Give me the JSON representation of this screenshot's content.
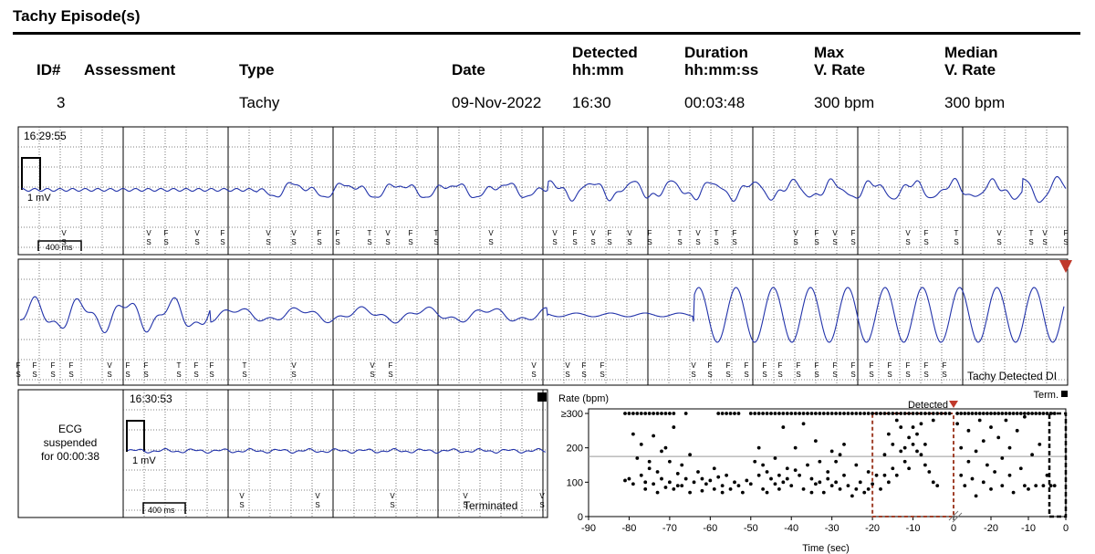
{
  "title": "Tachy Episode(s)",
  "table": {
    "headers": {
      "id": "ID#",
      "assessment": "Assessment",
      "type": "Type",
      "date": "Date",
      "detected_l1": "Detected",
      "detected_l2": "hh:mm",
      "duration_l1": "Duration",
      "duration_l2": "hh:mm:ss",
      "maxrate_l1": "Max",
      "maxrate_l2": "V. Rate",
      "medrate_l1": "Median",
      "medrate_l2": "V. Rate"
    },
    "row": {
      "id": "3",
      "assessment": "",
      "type": "Tachy",
      "date": "09-Nov-2022",
      "detected": "16:30",
      "duration": "00:03:48",
      "max_rate": "300 bpm",
      "median_rate": "300 bpm"
    }
  },
  "ecg": {
    "strip1_time": "16:29:55",
    "strip3_time": "16:30:53",
    "mv_label": "1 mV",
    "ms_label": "400 ms",
    "suspended_l1": "ECG",
    "suspended_l2": "suspended",
    "suspended_l3": "for 00:00:38",
    "tachy_detected": "Tachy Detected DI",
    "terminated": "Terminated",
    "trace_color": "#2233aa"
  },
  "chart_data": {
    "type": "scatter",
    "ylabel": "Rate (bpm)",
    "xlabel": "Time (sec)",
    "y_ticks": [
      "0",
      "100",
      "200",
      "≥300"
    ],
    "x_ticks_left": [
      "-90",
      "-80",
      "-70",
      "-60",
      "-50",
      "-40",
      "-30",
      "-20",
      "-10",
      "0"
    ],
    "x_ticks_right": [
      "-20",
      "-10",
      "0"
    ],
    "xlim_left": [
      -90,
      0
    ],
    "xlim_right": [
      -30,
      0
    ],
    "ylim": [
      0,
      300
    ],
    "reference_line_bpm": 175,
    "detected_label": "Detected",
    "term_label": "Term.",
    "detected_window_sec": [
      -20,
      0
    ],
    "points_left": [
      [
        -81,
        300
      ],
      [
        -80,
        300
      ],
      [
        -79,
        300
      ],
      [
        -78,
        300
      ],
      [
        -77,
        300
      ],
      [
        -76,
        300
      ],
      [
        -75,
        300
      ],
      [
        -74,
        300
      ],
      [
        -73,
        300
      ],
      [
        -72,
        300
      ],
      [
        -71,
        300
      ],
      [
        -70,
        300
      ],
      [
        -69,
        300
      ],
      [
        -66,
        300
      ],
      [
        -58,
        300
      ],
      [
        -57,
        300
      ],
      [
        -56,
        300
      ],
      [
        -55,
        300
      ],
      [
        -54,
        300
      ],
      [
        -53,
        300
      ],
      [
        -50,
        300
      ],
      [
        -49,
        300
      ],
      [
        -48,
        300
      ],
      [
        -47,
        300
      ],
      [
        -46,
        300
      ],
      [
        -45,
        300
      ],
      [
        -44,
        300
      ],
      [
        -43,
        300
      ],
      [
        -42,
        300
      ],
      [
        -41,
        300
      ],
      [
        -40,
        300
      ],
      [
        -39,
        300
      ],
      [
        -38,
        300
      ],
      [
        -37,
        300
      ],
      [
        -36,
        300
      ],
      [
        -35,
        300
      ],
      [
        -34,
        300
      ],
      [
        -33,
        300
      ],
      [
        -32,
        300
      ],
      [
        -31,
        300
      ],
      [
        -30,
        300
      ],
      [
        -29,
        300
      ],
      [
        -28,
        300
      ],
      [
        -27,
        300
      ],
      [
        -26,
        300
      ],
      [
        -25,
        300
      ],
      [
        -24,
        300
      ],
      [
        -23,
        300
      ],
      [
        -22,
        300
      ],
      [
        -21,
        300
      ],
      [
        -20,
        300
      ],
      [
        -19,
        300
      ],
      [
        -18,
        300
      ],
      [
        -17,
        300
      ],
      [
        -16,
        300
      ],
      [
        -15,
        300
      ],
      [
        -14,
        300
      ],
      [
        -13,
        300
      ],
      [
        -12,
        300
      ],
      [
        -11,
        300
      ],
      [
        -10,
        300
      ],
      [
        -9,
        300
      ],
      [
        -8,
        300
      ],
      [
        -7,
        300
      ],
      [
        -6,
        300
      ],
      [
        -5,
        300
      ],
      [
        -4,
        300
      ],
      [
        -3,
        300
      ],
      [
        -2,
        300
      ],
      [
        -1,
        300
      ],
      [
        -81,
        105
      ],
      [
        -80,
        110
      ],
      [
        -79,
        95
      ],
      [
        -79,
        240
      ],
      [
        -78,
        170
      ],
      [
        -77,
        120
      ],
      [
        -77,
        210
      ],
      [
        -76,
        100
      ],
      [
        -76,
        80
      ],
      [
        -75,
        160
      ],
      [
        -75,
        140
      ],
      [
        -74,
        235
      ],
      [
        -74,
        95
      ],
      [
        -73,
        130
      ],
      [
        -73,
        70
      ],
      [
        -72,
        190
      ],
      [
        -72,
        110
      ],
      [
        -71,
        85
      ],
      [
        -71,
        200
      ],
      [
        -70,
        160
      ],
      [
        -70,
        100
      ],
      [
        -69,
        260
      ],
      [
        -69,
        80
      ],
      [
        -68,
        125
      ],
      [
        -68,
        90
      ],
      [
        -67,
        90
      ],
      [
        -67,
        150
      ],
      [
        -66,
        110
      ],
      [
        -65,
        70
      ],
      [
        -65,
        180
      ],
      [
        -64,
        100
      ],
      [
        -63,
        130
      ],
      [
        -62,
        110
      ],
      [
        -62,
        75
      ],
      [
        -61,
        95
      ],
      [
        -60,
        105
      ],
      [
        -59,
        140
      ],
      [
        -59,
        80
      ],
      [
        -58,
        115
      ],
      [
        -57,
        90
      ],
      [
        -57,
        70
      ],
      [
        -56,
        120
      ],
      [
        -55,
        80
      ],
      [
        -54,
        100
      ],
      [
        -53,
        90
      ],
      [
        -52,
        70
      ],
      [
        -51,
        105
      ],
      [
        -50,
        95
      ],
      [
        -49,
        160
      ],
      [
        -48,
        200
      ],
      [
        -48,
        120
      ],
      [
        -47,
        80
      ],
      [
        -47,
        150
      ],
      [
        -46,
        130
      ],
      [
        -46,
        70
      ],
      [
        -45,
        110
      ],
      [
        -44,
        170
      ],
      [
        -44,
        95
      ],
      [
        -43,
        120
      ],
      [
        -43,
        80
      ],
      [
        -42,
        260
      ],
      [
        -42,
        100
      ],
      [
        -41,
        110
      ],
      [
        -41,
        140
      ],
      [
        -40,
        90
      ],
      [
        -39,
        135
      ],
      [
        -39,
        200
      ],
      [
        -38,
        120
      ],
      [
        -37,
        80
      ],
      [
        -37,
        270
      ],
      [
        -36,
        150
      ],
      [
        -35,
        110
      ],
      [
        -35,
        70
      ],
      [
        -34,
        95
      ],
      [
        -34,
        220
      ],
      [
        -33,
        160
      ],
      [
        -33,
        100
      ],
      [
        -32,
        70
      ],
      [
        -31,
        130
      ],
      [
        -31,
        110
      ],
      [
        -30,
        190
      ],
      [
        -30,
        90
      ],
      [
        -29,
        100
      ],
      [
        -29,
        160
      ],
      [
        -28,
        80
      ],
      [
        -28,
        180
      ],
      [
        -27,
        120
      ],
      [
        -27,
        210
      ],
      [
        -26,
        90
      ],
      [
        -25,
        60
      ],
      [
        -24,
        150
      ],
      [
        -24,
        80
      ],
      [
        -23,
        100
      ],
      [
        -22,
        70
      ],
      [
        -21,
        130
      ],
      [
        -21,
        80
      ],
      [
        -20,
        95
      ],
      [
        -19,
        120
      ],
      [
        -18,
        80
      ],
      [
        -17,
        180
      ],
      [
        -17,
        120
      ],
      [
        -16,
        100
      ],
      [
        -16,
        240
      ],
      [
        -15,
        140
      ],
      [
        -15,
        210
      ],
      [
        -14,
        280
      ],
      [
        -14,
        120
      ],
      [
        -13,
        190
      ],
      [
        -13,
        260
      ],
      [
        -12,
        200
      ],
      [
        -12,
        160
      ],
      [
        -11,
        230
      ],
      [
        -11,
        140
      ],
      [
        -10,
        260
      ],
      [
        -10,
        210
      ],
      [
        -9,
        190
      ],
      [
        -9,
        240
      ],
      [
        -8,
        180
      ],
      [
        -8,
        270
      ],
      [
        -7,
        150
      ],
      [
        -7,
        210
      ],
      [
        -6,
        130
      ],
      [
        -5,
        100
      ],
      [
        -5,
        280
      ],
      [
        -4,
        90
      ]
    ],
    "points_right": [
      [
        -29,
        300
      ],
      [
        -28,
        300
      ],
      [
        -27,
        300
      ],
      [
        -26,
        300
      ],
      [
        -25,
        300
      ],
      [
        -24,
        300
      ],
      [
        -23,
        300
      ],
      [
        -22,
        300
      ],
      [
        -21,
        300
      ],
      [
        -20,
        300
      ],
      [
        -19,
        300
      ],
      [
        -18,
        300
      ],
      [
        -17,
        300
      ],
      [
        -16,
        300
      ],
      [
        -15,
        300
      ],
      [
        -14,
        300
      ],
      [
        -13,
        300
      ],
      [
        -12,
        300
      ],
      [
        -11,
        300
      ],
      [
        -10,
        300
      ],
      [
        -9,
        300
      ],
      [
        -8,
        300
      ],
      [
        -7,
        300
      ],
      [
        -6,
        300
      ],
      [
        -5,
        300
      ],
      [
        -4,
        300
      ],
      [
        -3,
        300
      ],
      [
        -29,
        270
      ],
      [
        -28,
        120
      ],
      [
        -28,
        200
      ],
      [
        -27,
        90
      ],
      [
        -26,
        250
      ],
      [
        -26,
        160
      ],
      [
        -25,
        110
      ],
      [
        -24,
        60
      ],
      [
        -24,
        190
      ],
      [
        -23,
        280
      ],
      [
        -22,
        100
      ],
      [
        -22,
        220
      ],
      [
        -21,
        150
      ],
      [
        -20,
        80
      ],
      [
        -20,
        260
      ],
      [
        -19,
        130
      ],
      [
        -18,
        230
      ],
      [
        -17,
        90
      ],
      [
        -17,
        170
      ],
      [
        -16,
        280
      ],
      [
        -15,
        120
      ],
      [
        -15,
        200
      ],
      [
        -14,
        70
      ],
      [
        -13,
        250
      ],
      [
        -12,
        140
      ],
      [
        -11,
        90
      ],
      [
        -11,
        290
      ],
      [
        -10,
        80
      ],
      [
        -9,
        180
      ],
      [
        -8,
        90
      ],
      [
        -7,
        210
      ],
      [
        -6,
        90
      ],
      [
        -5,
        120
      ],
      [
        -4,
        90
      ],
      [
        -3,
        90
      ]
    ]
  }
}
